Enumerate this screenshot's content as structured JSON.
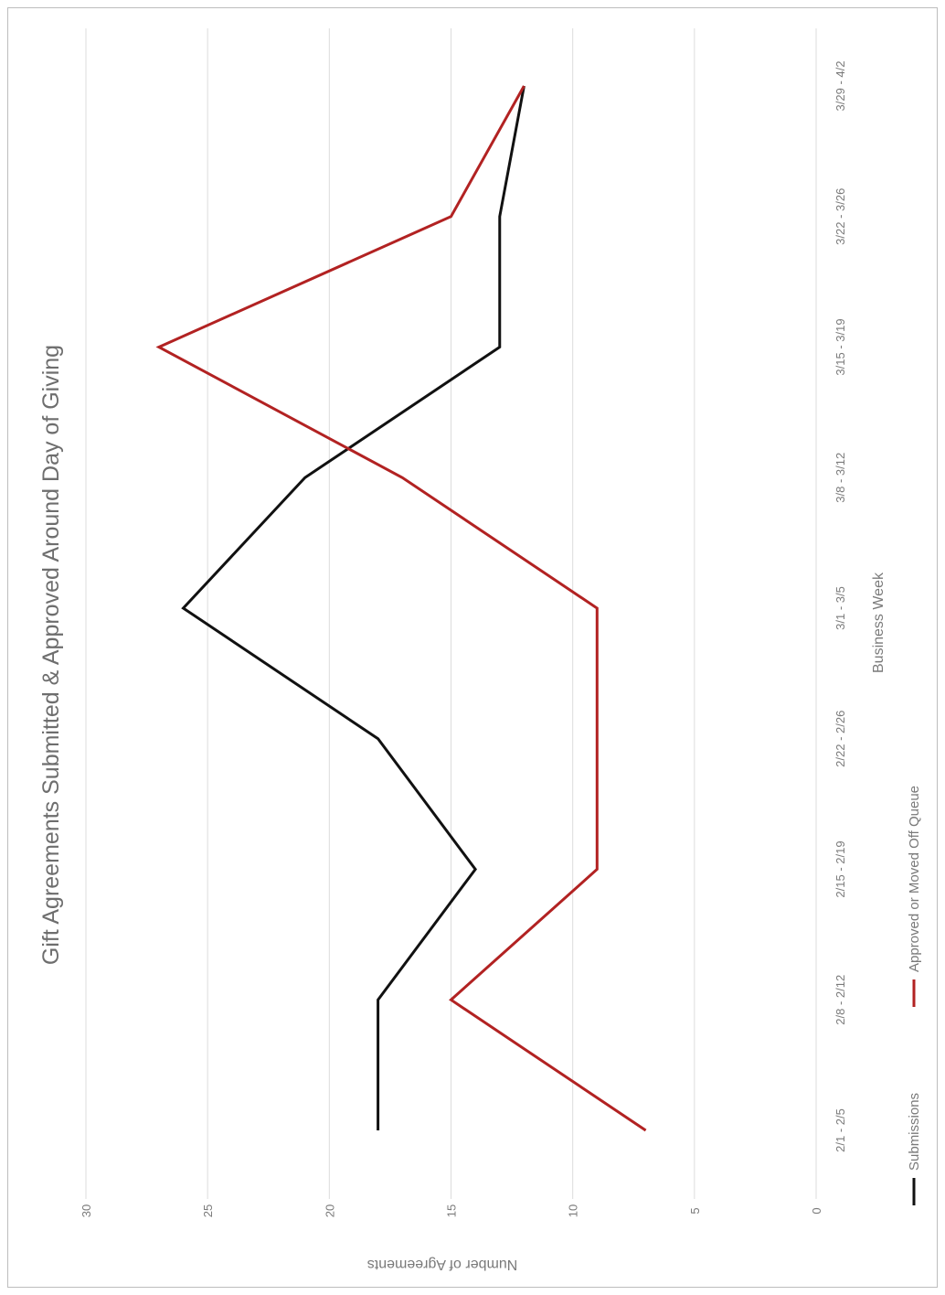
{
  "chart_data": {
    "type": "line",
    "title": "Gift Agreements Submitted & Approved Around Day of Giving",
    "xlabel": "Business Week",
    "ylabel": "Number of Agreements",
    "categories": [
      "2/1 - 2/5",
      "2/8 - 2/12",
      "2/15 - 2/19",
      "2/22 - 2/26",
      "3/1 - 3/5",
      "3/8 - 3/12",
      "3/15 - 3/19",
      "3/22 - 3/26",
      "3/29 - 4/2"
    ],
    "ylim": [
      0,
      30
    ],
    "yticks": [
      "0",
      "5",
      "10",
      "15",
      "20",
      "25",
      "30"
    ],
    "grid": true,
    "legend_position": "bottom",
    "series": [
      {
        "name": "Submissions",
        "color": "#111111",
        "values": [
          18,
          18,
          14,
          18,
          26,
          21,
          13,
          13,
          12
        ]
      },
      {
        "name": "Approved or Moved Off Queue",
        "color": "#b22222",
        "values": [
          7,
          15,
          9,
          9,
          9,
          17,
          27,
          15,
          12
        ]
      }
    ]
  }
}
